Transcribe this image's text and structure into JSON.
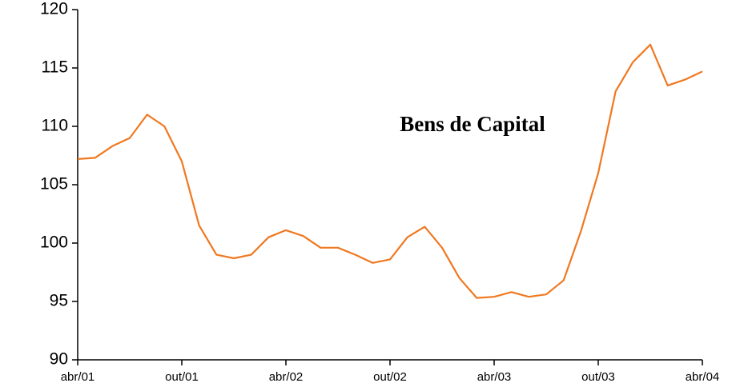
{
  "chart_data": {
    "type": "line",
    "categories": [
      "abr/01",
      null,
      null,
      null,
      null,
      null,
      "out/01",
      null,
      null,
      null,
      null,
      null,
      "abr/02",
      null,
      null,
      null,
      null,
      null,
      "out/02",
      null,
      null,
      null,
      null,
      null,
      "abr/03",
      null,
      null,
      null,
      null,
      null,
      "out/03",
      null,
      null,
      null,
      null,
      null,
      "abr/04"
    ],
    "values": [
      107.2,
      107.3,
      108.3,
      109.0,
      111.0,
      110.0,
      107.0,
      101.5,
      99.0,
      98.7,
      99.0,
      100.5,
      101.1,
      100.6,
      99.6,
      99.6,
      99.0,
      98.3,
      98.6,
      100.5,
      101.4,
      99.6,
      97.0,
      95.3,
      95.4,
      95.8,
      95.4,
      95.6,
      96.8,
      101.0,
      106.0,
      113.0,
      115.5,
      117.0,
      113.5,
      114.0,
      114.7
    ],
    "color": "#f07820",
    "ylim": [
      90,
      120
    ],
    "yticks": [
      90,
      95,
      100,
      105,
      110,
      115,
      120
    ],
    "annotation": "Bens de Capital"
  }
}
